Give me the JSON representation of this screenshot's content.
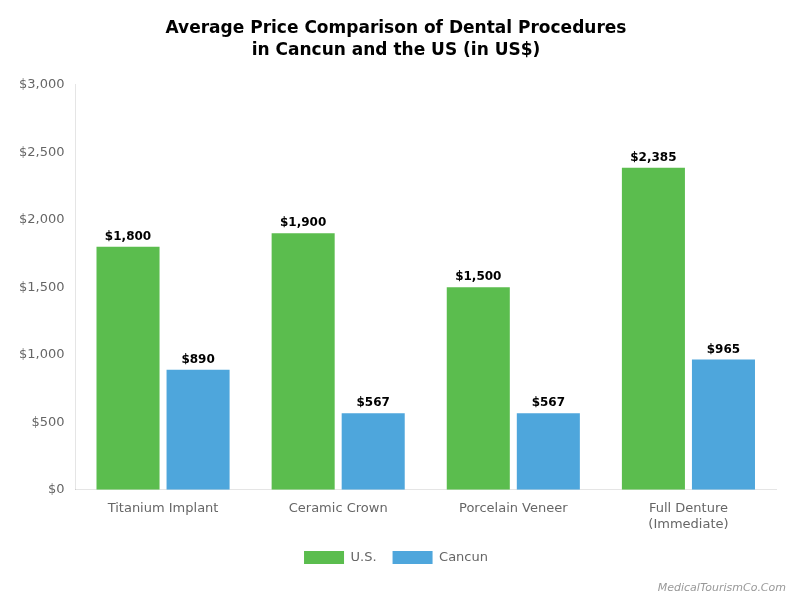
{
  "chart_data": {
    "type": "bar",
    "title": "Average Price Comparison of Dental Procedures",
    "subtitle": "in Cancun and the US (in US$)",
    "categories": [
      "Titanium Implant",
      "Ceramic Crown",
      "Porcelain Veneer",
      "Full Denture\n(Immediate)"
    ],
    "series": [
      {
        "name": "U.S.",
        "color": "#5BBD4E",
        "values": [
          1800,
          1900,
          1500,
          2385
        ],
        "value_labels": [
          "$1,800",
          "$1,900",
          "$1,500",
          "$2,385"
        ]
      },
      {
        "name": "Cancun",
        "color": "#4EA6DC",
        "values": [
          890,
          567,
          567,
          965
        ],
        "value_labels": [
          "$890",
          "$567",
          "$567",
          "$965"
        ]
      }
    ],
    "ylim": [
      0,
      3000
    ],
    "yticks": [
      {
        "value": 0,
        "label": "$0"
      },
      {
        "value": 500,
        "label": "$500"
      },
      {
        "value": 1000,
        "label": "$1,000"
      },
      {
        "value": 1500,
        "label": "$1,500"
      },
      {
        "value": 2000,
        "label": "$2,000"
      },
      {
        "value": 2500,
        "label": "$2,500"
      },
      {
        "value": 3000,
        "label": "$3,000"
      }
    ],
    "grid": false,
    "legend": "bottom",
    "data_labels": true,
    "annotation": "MedicalTourismCo.Com"
  }
}
